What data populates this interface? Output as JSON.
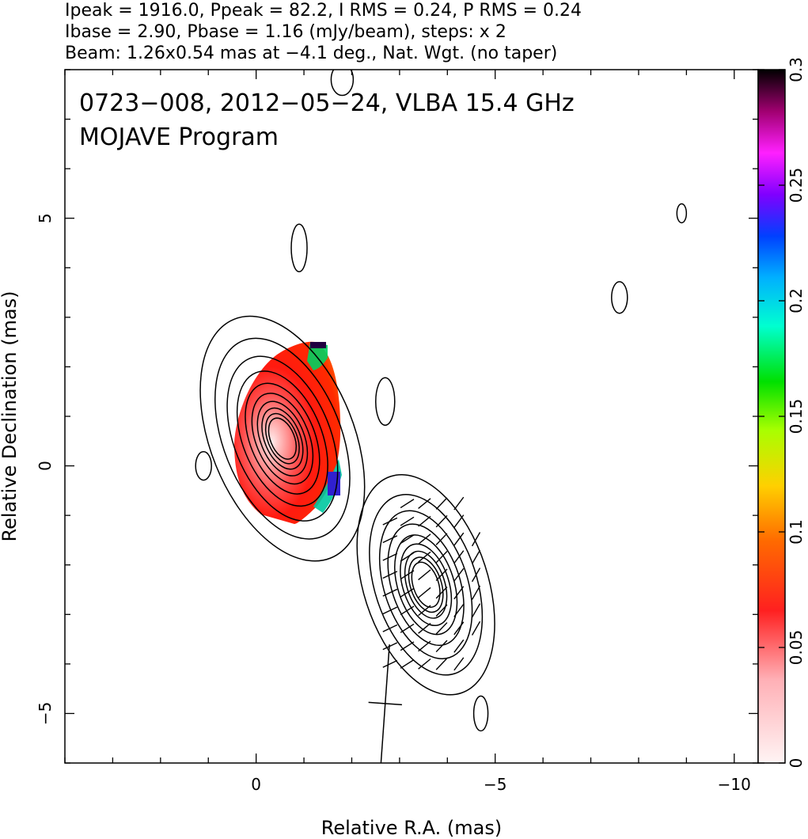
{
  "chart_data": {
    "type": "contour",
    "header_lines": [
      "Ipeak = 1916.0, Ppeak = 82.2, I RMS = 0.24, P RMS = 0.24",
      "Ibase = 2.90, Pbase = 1.16 (mJy/beam), steps: x 2",
      "Beam: 1.26x0.54 mas at −4.1 deg., Nat. Wgt. (no taper)"
    ],
    "annotations": [
      "0723−008, 2012−05−24, VLBA 15.4 GHz",
      "MOJAVE Program"
    ],
    "xlabel": "Relative R.A. (mas)",
    "ylabel": "Relative Declination (mas)",
    "xlim": [
      4,
      -10.5
    ],
    "ylim": [
      -6,
      8
    ],
    "x_ticks": [
      {
        "value": 0,
        "label": "0"
      },
      {
        "value": -5,
        "label": "−5"
      },
      {
        "value": -10,
        "label": "−10"
      }
    ],
    "y_ticks": [
      {
        "value": 5,
        "label": "5"
      },
      {
        "value": 0,
        "label": "0"
      },
      {
        "value": -5,
        "label": "−5"
      }
    ],
    "colorbar": {
      "range": [
        0,
        0.3
      ],
      "ticks": [
        {
          "value": 0,
          "label": "0"
        },
        {
          "value": 0.05,
          "label": "0.05"
        },
        {
          "value": 0.1,
          "label": "0.1"
        },
        {
          "value": 0.15,
          "label": "0.15"
        },
        {
          "value": 0.2,
          "label": "0.2"
        },
        {
          "value": 0.25,
          "label": "0.25"
        },
        {
          "value": 0.3,
          "label": "0.3"
        }
      ]
    },
    "components": [
      {
        "name": "core",
        "x": -0.55,
        "y": 0.55,
        "contour_levels": 10,
        "max_semi_major": 2.6,
        "max_semi_minor": 1.5,
        "angle_deg": -22
      },
      {
        "name": "jet",
        "x": -3.55,
        "y": -2.4,
        "contour_levels": 9,
        "max_semi_major": 2.3,
        "max_semi_minor": 1.3,
        "angle_deg": -18
      }
    ],
    "beam": {
      "x": -2.7,
      "y": -4.8,
      "major_mas": 1.26,
      "minor_mas": 0.54,
      "pa_deg": -4.1
    }
  }
}
